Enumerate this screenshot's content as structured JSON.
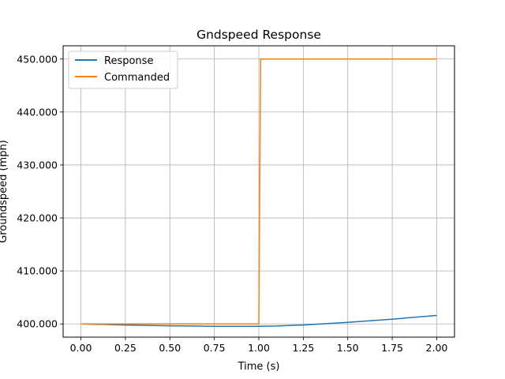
{
  "chart_data": {
    "type": "line",
    "title": "Gndspeed Response",
    "xlabel": "Time (s)",
    "ylabel": "Groundspeed (mph)",
    "xlim": [
      -0.1,
      2.1
    ],
    "ylim": [
      397.5,
      452.5
    ],
    "xticks": [
      0.0,
      0.25,
      0.5,
      0.75,
      1.0,
      1.25,
      1.5,
      1.75,
      2.0
    ],
    "xtick_labels": [
      "0.00",
      "0.25",
      "0.50",
      "0.75",
      "1.00",
      "1.25",
      "1.50",
      "1.75",
      "2.00"
    ],
    "yticks": [
      400,
      410,
      420,
      430,
      440,
      450
    ],
    "ytick_labels": [
      "400.000",
      "410.000",
      "420.000",
      "430.000",
      "440.000",
      "450.000"
    ],
    "grid": true,
    "legend_position": "upper-left",
    "series": [
      {
        "name": "Response",
        "color": "#1f77b4",
        "x": [
          0.0,
          0.25,
          0.5,
          0.75,
          1.0,
          1.1,
          1.25,
          1.5,
          1.75,
          2.0
        ],
        "y": [
          400.0,
          399.8,
          399.65,
          399.55,
          399.55,
          399.6,
          399.8,
          400.3,
          400.9,
          401.6
        ]
      },
      {
        "name": "Commanded",
        "color": "#ff7f0e",
        "x": [
          0.0,
          1.0,
          1.01,
          2.0
        ],
        "y": [
          400.0,
          400.0,
          450.0,
          450.0
        ]
      }
    ]
  }
}
